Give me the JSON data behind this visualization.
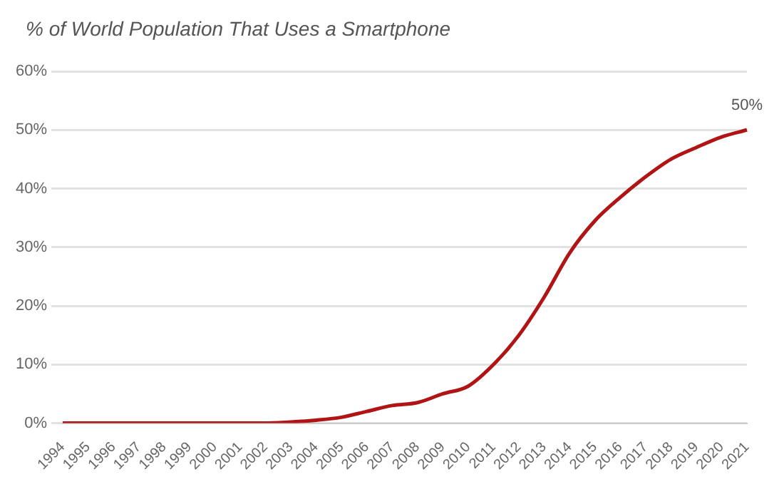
{
  "chart_data": {
    "type": "line",
    "title": "% of World Population That Uses a Smartphone",
    "categories": [
      "1994",
      "1995",
      "1996",
      "1997",
      "1998",
      "1999",
      "2000",
      "2001",
      "2002",
      "2003",
      "2004",
      "2005",
      "2006",
      "2007",
      "2008",
      "2009",
      "2010",
      "2011",
      "2012",
      "2013",
      "2014",
      "2015",
      "2016",
      "2017",
      "2018",
      "2019",
      "2020",
      "2021"
    ],
    "series": [
      {
        "color": "#b01414",
        "values": [
          0,
          0,
          0,
          0,
          0,
          0,
          0,
          0,
          0,
          0.2,
          0.5,
          1,
          2,
          3,
          3.5,
          5,
          6.3,
          10,
          15,
          21.5,
          29,
          34.5,
          38.5,
          42,
          45,
          47,
          48.8,
          50
        ],
        "value_labels": [
          null,
          null,
          null,
          null,
          null,
          null,
          null,
          null,
          null,
          null,
          null,
          null,
          null,
          null,
          null,
          null,
          null,
          null,
          null,
          null,
          null,
          null,
          null,
          null,
          null,
          null,
          null,
          "50%"
        ]
      }
    ],
    "ylim": [
      0,
      60
    ],
    "yticks": [
      {
        "value": 0,
        "label": "0%"
      },
      {
        "value": 10,
        "label": "10%"
      },
      {
        "value": 20,
        "label": "20%"
      },
      {
        "value": 30,
        "label": "30%"
      },
      {
        "value": 40,
        "label": "40%"
      },
      {
        "value": 50,
        "label": "50%"
      },
      {
        "value": 60,
        "label": "60%"
      }
    ],
    "grid": "y",
    "legend": false,
    "marker": "none",
    "line_style": "solid"
  }
}
